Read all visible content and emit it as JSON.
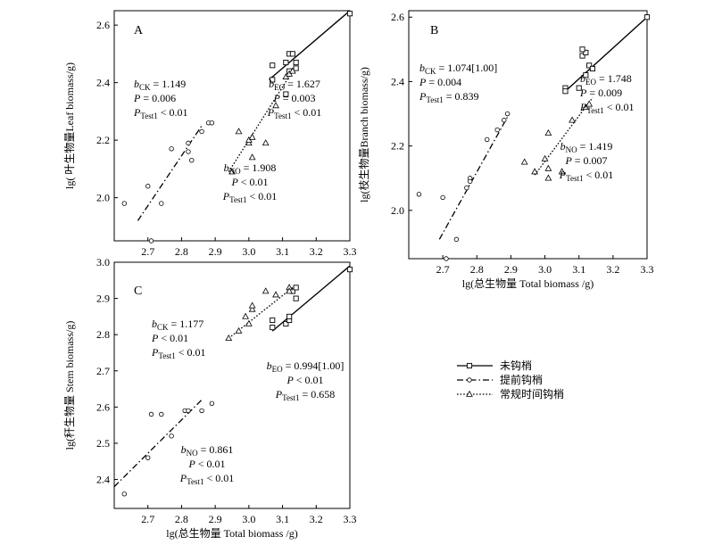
{
  "legend": {
    "items": [
      {
        "label": "未钩梢",
        "marker": "square",
        "line": "solid"
      },
      {
        "label": "提前钩梢",
        "marker": "circle",
        "line": "dashdot"
      },
      {
        "label": "常规时间钩梢",
        "marker": "triangle",
        "line": "dotted"
      }
    ]
  },
  "chart_data": [
    {
      "panel": "A",
      "type": "scatter",
      "xlabel": "",
      "ylabel": "lg( 叶生物量Leaf biomass/g)",
      "xlim": [
        2.6,
        3.3
      ],
      "ylim": [
        1.85,
        2.65
      ],
      "xticks": [
        2.7,
        2.8,
        2.9,
        3.0,
        3.1,
        3.2,
        3.3
      ],
      "yticks": [
        2.0,
        2.2,
        2.4,
        2.6
      ],
      "series": [
        {
          "name": "未钩梢",
          "marker": "square",
          "line": "solid",
          "x": [
            3.07,
            3.07,
            3.11,
            3.12,
            3.12,
            3.13,
            3.14,
            3.14,
            3.11,
            3.3
          ],
          "y": [
            2.46,
            2.41,
            2.47,
            2.5,
            2.44,
            2.5,
            2.45,
            2.47,
            2.36,
            2.64
          ],
          "fit": {
            "x": [
              3.06,
              3.3
            ],
            "y": [
              2.41,
              2.65
            ]
          }
        },
        {
          "name": "提前钩梢",
          "marker": "circle",
          "line": "dashdot",
          "x": [
            2.63,
            2.7,
            2.71,
            2.74,
            2.77,
            2.82,
            2.82,
            2.83,
            2.86,
            2.88,
            2.89
          ],
          "y": [
            1.98,
            2.04,
            1.85,
            1.98,
            2.17,
            2.16,
            2.19,
            2.13,
            2.23,
            2.26,
            2.26
          ],
          "fit": {
            "x": [
              2.67,
              2.86
            ],
            "y": [
              1.92,
              2.25
            ]
          }
        },
        {
          "name": "常规时间钩梢",
          "marker": "triangle",
          "line": "dotted",
          "x": [
            2.95,
            2.97,
            3.0,
            3.0,
            3.01,
            3.01,
            3.05,
            3.08,
            3.11,
            3.12,
            3.13
          ],
          "y": [
            2.09,
            2.23,
            2.19,
            2.2,
            2.14,
            2.21,
            2.19,
            2.32,
            2.42,
            2.43,
            2.44
          ],
          "fit": {
            "x": [
              2.94,
              3.13
            ],
            "y": [
              2.09,
              2.44
            ]
          }
        }
      ],
      "annotations": [
        {
          "id": "ck",
          "lines": [
            [
              "b",
              "CK",
              " = 1.149"
            ],
            [
              "P",
              "",
              " = 0.006"
            ],
            [
              "P",
              "Test1",
              " < 0.01"
            ]
          ]
        },
        {
          "id": "eo",
          "lines": [
            [
              "b",
              "EO",
              " = 1.627"
            ],
            [
              "P",
              "",
              " = 0.003"
            ],
            [
              "P",
              "Test1",
              " < 0.01"
            ]
          ]
        },
        {
          "id": "no",
          "lines": [
            [
              "b",
              "NO",
              " = 1.908"
            ],
            [
              "P",
              "",
              " < 0.01"
            ],
            [
              "P",
              "Test1",
              " < 0.01"
            ]
          ]
        }
      ]
    },
    {
      "panel": "B",
      "type": "scatter",
      "xlabel": "lg(总生物量 Total biomass /g)",
      "ylabel": "lg(枝生物量Branch biomass/g)",
      "xlim": [
        2.6,
        3.3
      ],
      "ylim": [
        1.85,
        2.62
      ],
      "xticks": [
        2.7,
        2.8,
        2.9,
        3.0,
        3.1,
        3.2,
        3.3
      ],
      "yticks": [
        2.0,
        2.2,
        2.4,
        2.6
      ],
      "series": [
        {
          "name": "未钩梢",
          "marker": "square",
          "line": "solid",
          "x": [
            3.06,
            3.06,
            3.1,
            3.11,
            3.12,
            3.12,
            3.13,
            3.14,
            3.11,
            3.3
          ],
          "y": [
            2.38,
            2.37,
            2.38,
            2.48,
            2.49,
            2.42,
            2.45,
            2.44,
            2.5,
            2.6
          ],
          "fit": {
            "x": [
              3.06,
              3.3
            ],
            "y": [
              2.37,
              2.6
            ]
          }
        },
        {
          "name": "提前钩梢",
          "marker": "circle",
          "line": "dashdot",
          "x": [
            2.63,
            2.7,
            2.71,
            2.74,
            2.77,
            2.78,
            2.78,
            2.83,
            2.86,
            2.88,
            2.89
          ],
          "y": [
            2.05,
            2.04,
            1.85,
            1.91,
            2.07,
            2.1,
            2.09,
            2.22,
            2.25,
            2.28,
            2.3
          ],
          "fit": {
            "x": [
              2.69,
              2.89
            ],
            "y": [
              1.91,
              2.29
            ]
          }
        },
        {
          "name": "常规时间钩梢",
          "marker": "triangle",
          "line": "dotted",
          "x": [
            2.94,
            2.97,
            3.0,
            3.01,
            3.01,
            3.01,
            3.05,
            3.08,
            3.12,
            3.13
          ],
          "y": [
            2.15,
            2.12,
            2.16,
            2.13,
            2.1,
            2.24,
            2.12,
            2.28,
            2.32,
            2.33
          ],
          "fit": {
            "x": [
              2.97,
              3.14
            ],
            "y": [
              2.11,
              2.35
            ]
          }
        }
      ],
      "annotations": [
        {
          "id": "ck",
          "lines": [
            [
              "b",
              "CK",
              " = 1.074[1.00]"
            ],
            [
              "P",
              "",
              " = 0.004"
            ],
            [
              "P",
              "Test1",
              " = 0.839"
            ]
          ]
        },
        {
          "id": "eo",
          "lines": [
            [
              "b",
              "EO",
              " = 1.748"
            ],
            [
              "P",
              "",
              " = 0.009"
            ],
            [
              "P",
              "Test1",
              " < 0.01"
            ]
          ]
        },
        {
          "id": "no",
          "lines": [
            [
              "b",
              "NO",
              " = 1.419"
            ],
            [
              "P",
              "",
              " = 0.007"
            ],
            [
              "P",
              "Test1",
              " < 0.01"
            ]
          ]
        }
      ]
    },
    {
      "panel": "C",
      "type": "scatter",
      "xlabel": "lg(总生物量 Total biomass /g)",
      "ylabel": "lg(秆生物量 Stem biomass/g)",
      "xlim": [
        2.6,
        3.3
      ],
      "ylim": [
        2.32,
        3.0
      ],
      "xticks": [
        2.7,
        2.8,
        2.9,
        3.0,
        3.1,
        3.2,
        3.3
      ],
      "yticks": [
        2.4,
        2.5,
        2.6,
        2.7,
        2.8,
        2.9,
        3.0
      ],
      "series": [
        {
          "name": "未钩梢",
          "marker": "square",
          "line": "solid",
          "x": [
            3.07,
            3.07,
            3.11,
            3.12,
            3.12,
            3.13,
            3.14,
            3.14,
            3.3
          ],
          "y": [
            2.82,
            2.84,
            2.83,
            2.84,
            2.85,
            2.92,
            2.9,
            2.93,
            2.98
          ],
          "fit": {
            "x": [
              3.07,
              3.3
            ],
            "y": [
              2.81,
              2.99
            ]
          }
        },
        {
          "name": "提前钩梢",
          "marker": "circle",
          "line": "dashdot",
          "x": [
            2.63,
            2.7,
            2.71,
            2.74,
            2.77,
            2.81,
            2.82,
            2.86,
            2.89
          ],
          "y": [
            2.36,
            2.46,
            2.58,
            2.58,
            2.52,
            2.59,
            2.59,
            2.59,
            2.61
          ],
          "fit": {
            "x": [
              2.6,
              2.86
            ],
            "y": [
              2.38,
              2.62
            ]
          }
        },
        {
          "name": "常规时间钩梢",
          "marker": "triangle",
          "line": "dotted",
          "x": [
            2.94,
            2.97,
            2.99,
            3.0,
            3.01,
            3.01,
            3.05,
            3.08,
            3.12,
            3.12
          ],
          "y": [
            2.79,
            2.81,
            2.85,
            2.83,
            2.87,
            2.88,
            2.92,
            2.91,
            2.93,
            2.92
          ],
          "fit": {
            "x": [
              2.94,
              3.13
            ],
            "y": [
              2.79,
              2.93
            ]
          }
        }
      ],
      "annotations": [
        {
          "id": "ck",
          "lines": [
            [
              "b",
              "CK",
              " = 1.177"
            ],
            [
              "P",
              "",
              " < 0.01"
            ],
            [
              "P",
              "Test1",
              " < 0.01"
            ]
          ]
        },
        {
          "id": "eo",
          "lines": [
            [
              "b",
              "EO",
              " = 0.994[1.00]"
            ],
            [
              "P",
              "",
              " < 0.01"
            ],
            [
              "P",
              "Test1",
              " = 0.658"
            ]
          ]
        },
        {
          "id": "no",
          "lines": [
            [
              "b",
              "NO",
              " = 0.861"
            ],
            [
              "P",
              "",
              " < 0.01"
            ],
            [
              "P",
              "Test1",
              " < 0.01"
            ]
          ]
        }
      ]
    }
  ]
}
